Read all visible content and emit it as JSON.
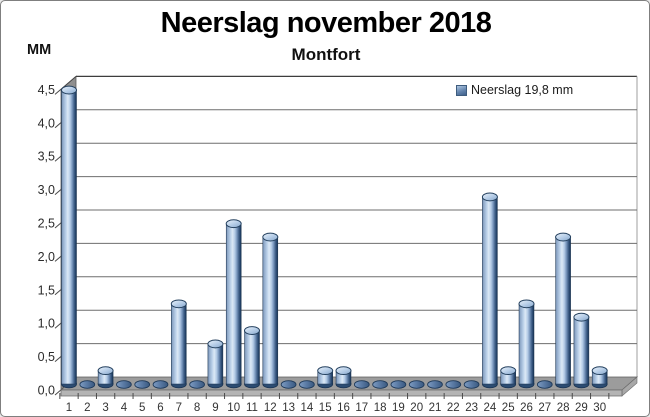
{
  "window": {
    "background_color": "#ffffff",
    "border_color": "#7f7f7f"
  },
  "header": {
    "title": "Neerslag november 2018",
    "subtitle": "Montfort",
    "unit_label": "MM"
  },
  "legend": {
    "label": "Neerslag 19,8 mm",
    "marker_color": "#6485ae"
  },
  "chart_data": {
    "type": "bar",
    "style": "3d-cylinder",
    "title": "Neerslag november 2018",
    "subtitle": "Montfort",
    "ylabel": "MM",
    "xlabel": "",
    "legend_entries": [
      "Neerslag 19,8 mm"
    ],
    "legend_position": "top-right",
    "grid": true,
    "ylim": [
      0,
      4.5
    ],
    "ytick_step": 0.5,
    "ytick_labels": [
      "0,0",
      "0,5",
      "1,0",
      "1,5",
      "2,0",
      "2,5",
      "3,0",
      "3,5",
      "4,0",
      "4,5"
    ],
    "categories": [
      "1",
      "2",
      "3",
      "4",
      "5",
      "6",
      "7",
      "8",
      "9",
      "10",
      "11",
      "12",
      "13",
      "14",
      "15",
      "16",
      "17",
      "18",
      "19",
      "20",
      "21",
      "22",
      "23",
      "24",
      "25",
      "26",
      "27",
      "28",
      "29",
      "30"
    ],
    "values": [
      4.4,
      0,
      0.2,
      0,
      0,
      0,
      1.2,
      0,
      0.6,
      2.4,
      0.8,
      2.2,
      0,
      0,
      0.2,
      0.2,
      0,
      0,
      0,
      0,
      0,
      0,
      0,
      2.8,
      0.2,
      1.2,
      0,
      2.2,
      1.0,
      0.2
    ],
    "total_mm": "19,8",
    "colors": {
      "cylinder_light": "#dce9f6",
      "cylinder_mid": "#89a3c4",
      "cylinder_dark": "#16304f",
      "zero_disk": "#5c7ca6",
      "wall_gray": "#8f8f8f",
      "floor_gray": "#9c9c9c",
      "gridline": "#6e6e6e"
    }
  }
}
